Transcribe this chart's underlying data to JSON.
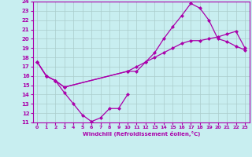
{
  "xlabel": "Windchill (Refroidissement éolien,°C)",
  "bg_color": "#c8eef0",
  "line_color": "#aa00aa",
  "grid_color": "#aacccc",
  "xlim": [
    -0.5,
    23.5
  ],
  "ylim": [
    11,
    24
  ],
  "xticks": [
    0,
    1,
    2,
    3,
    4,
    5,
    6,
    7,
    8,
    9,
    10,
    11,
    12,
    13,
    14,
    15,
    16,
    17,
    18,
    19,
    20,
    21,
    22,
    23
  ],
  "yticks": [
    11,
    12,
    13,
    14,
    15,
    16,
    17,
    18,
    19,
    20,
    21,
    22,
    23,
    24
  ],
  "curve1_x": [
    0,
    1,
    2,
    3,
    4,
    5,
    6,
    7,
    8,
    9,
    10
  ],
  "curve1_y": [
    17.5,
    16.0,
    15.5,
    14.2,
    13.0,
    11.8,
    11.1,
    11.5,
    12.5,
    12.5,
    14.0
  ],
  "curve2_x": [
    0,
    1,
    2,
    3,
    10,
    11,
    12,
    13,
    14,
    15,
    16,
    17,
    18,
    19,
    20,
    21,
    22,
    23
  ],
  "curve2_y": [
    17.5,
    16.0,
    15.5,
    14.8,
    16.5,
    17.0,
    17.5,
    18.0,
    18.5,
    19.0,
    19.5,
    19.8,
    19.8,
    20.0,
    20.2,
    20.5,
    20.8,
    19.0
  ],
  "curve3_x": [
    0,
    1,
    2,
    3,
    10,
    11,
    12,
    13,
    14,
    15,
    16,
    17,
    18,
    19,
    20,
    21,
    22,
    23
  ],
  "curve3_y": [
    17.5,
    16.0,
    15.5,
    14.8,
    16.5,
    16.5,
    17.5,
    18.5,
    20.0,
    21.3,
    22.5,
    23.8,
    23.3,
    22.0,
    20.0,
    19.7,
    19.2,
    18.8
  ]
}
